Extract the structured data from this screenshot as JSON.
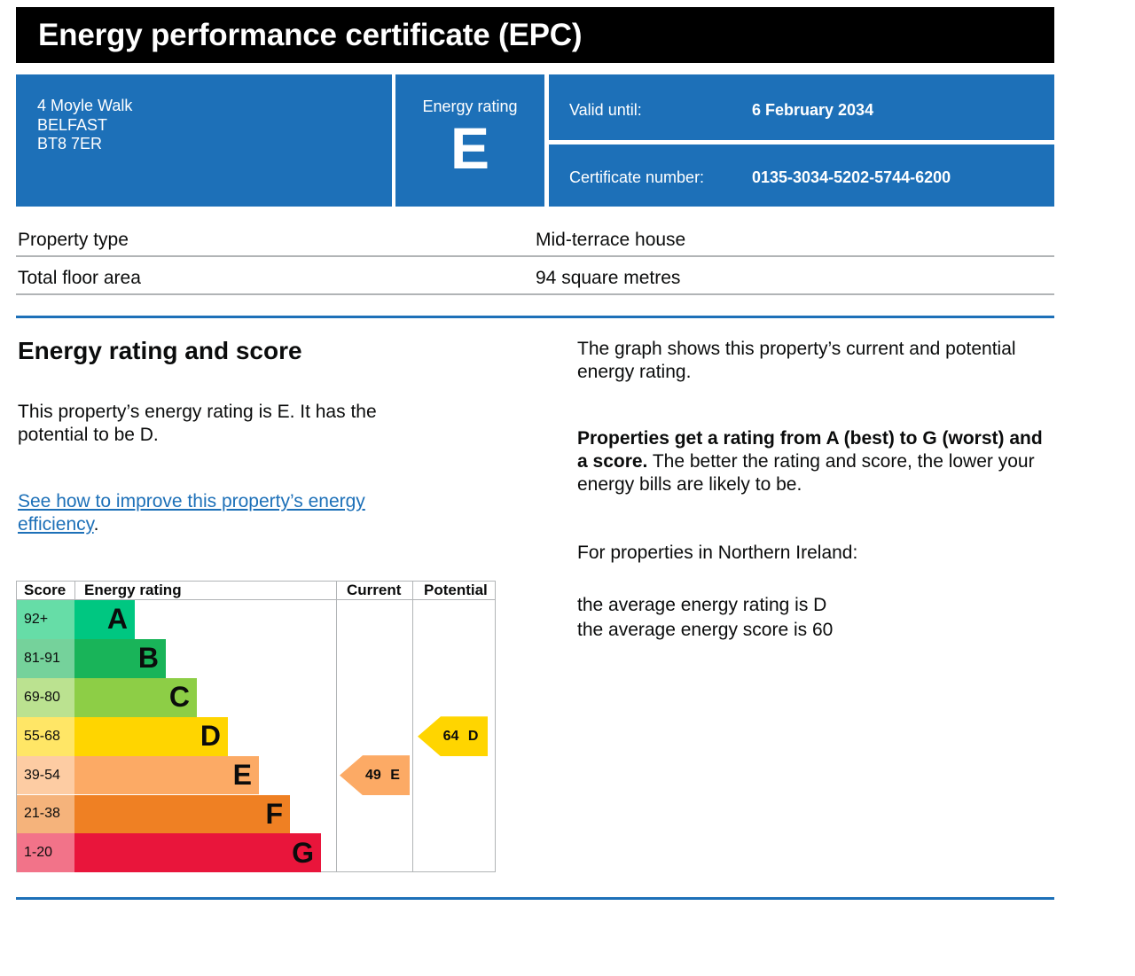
{
  "header": {
    "title": "Energy performance certificate (EPC)"
  },
  "address": {
    "line1": "4 Moyle Walk",
    "line2": "BELFAST",
    "line3": "BT8 7ER"
  },
  "energy_rating_box": {
    "label": "Energy rating",
    "value": "E"
  },
  "valid_until": {
    "label": "Valid until:",
    "value": "6 February 2034"
  },
  "certificate_number": {
    "label": "Certificate number:",
    "value": "0135-3034-5202-5744-6200"
  },
  "property": {
    "type_label": "Property type",
    "type_value": "Mid-terrace house",
    "area_label": "Total floor area",
    "area_value": "94 square metres"
  },
  "section": {
    "title": "Energy rating and score",
    "rating_text": "This property’s energy rating is E. It has the potential to be D.",
    "improve_link": "See how to improve this property’s energy efficiency",
    "improve_link_suffix": ".",
    "graph_text": "The graph shows this property’s current and potential energy rating.",
    "ratings_bold": "Properties get a rating from A (best) to G (worst) and a score.",
    "ratings_rest": " The better the rating and score, the lower your energy bills are likely to be.",
    "ni_intro": "For properties in Northern Ireland:",
    "avg_rating": "the average energy rating is D",
    "avg_score": "the average energy score is 60"
  },
  "chart_data": {
    "type": "bar",
    "headers": {
      "score": "Score",
      "rating": "Energy rating",
      "current": "Current",
      "potential": "Potential"
    },
    "bands": [
      {
        "score": "92+",
        "letter": "A",
        "color": "#00c781",
        "score_bg": "#66dda7"
      },
      {
        "score": "81-91",
        "letter": "B",
        "color": "#19b459",
        "score_bg": "#75d29b"
      },
      {
        "score": "69-80",
        "letter": "C",
        "color": "#8dce46",
        "score_bg": "#bbe290"
      },
      {
        "score": "55-68",
        "letter": "D",
        "color": "#ffd500",
        "score_bg": "#ffe666"
      },
      {
        "score": "39-54",
        "letter": "E",
        "color": "#fcaa65",
        "score_bg": "#fdcca3"
      },
      {
        "score": "21-38",
        "letter": "F",
        "color": "#ef8023",
        "score_bg": "#f5b37b"
      },
      {
        "score": "1-20",
        "letter": "G",
        "color": "#e9153b",
        "score_bg": "#f27389"
      }
    ],
    "current": {
      "score": 49,
      "letter": "E",
      "label": "49 E",
      "color": "#fcaa65"
    },
    "potential": {
      "score": 64,
      "letter": "D",
      "label": "64 D",
      "color": "#ffd500"
    }
  }
}
